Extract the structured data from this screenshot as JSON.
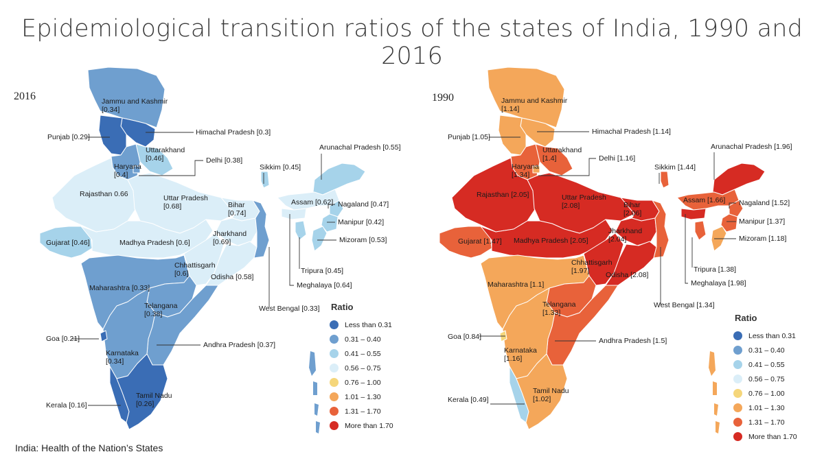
{
  "title": "Epidemiological transition ratios of the states of India, 1990 and 2016",
  "source_note": "India: Health of the Nation’s States",
  "legend": {
    "title": "Ratio",
    "classes": [
      {
        "label": "Less than 0.31",
        "color": "#3a6db5"
      },
      {
        "label": "0.31 – 0.40",
        "color": "#6f9fcf"
      },
      {
        "label": "0.41 – 0.55",
        "color": "#a6d3ea"
      },
      {
        "label": "0.56 – 0.75",
        "color": "#dbeef8"
      },
      {
        "label": "0.76 – 1.00",
        "color": "#f5d67a"
      },
      {
        "label": "1.01 – 1.30",
        "color": "#f4a75a"
      },
      {
        "label": "1.31 – 1.70",
        "color": "#e8623a"
      },
      {
        "label": "More than 1.70",
        "color": "#d62b23"
      }
    ]
  },
  "maps": [
    {
      "year": "2016",
      "states": {
        "jk": {
          "name": "Jammu and Kashmir",
          "value": "[0.34]",
          "color": "#6f9fcf"
        },
        "hp": {
          "name": "Himachal Pradesh",
          "value": "[0.3]",
          "color": "#3a6db5"
        },
        "pb": {
          "name": "Punjab",
          "value": "[0.29]",
          "color": "#3a6db5"
        },
        "uk": {
          "name": "Uttarakhand",
          "value": "[0.46]",
          "color": "#a6d3ea"
        },
        "hr": {
          "name": "Haryana",
          "value": "[0.4]",
          "color": "#6f9fcf"
        },
        "dl": {
          "name": "Delhi",
          "value": "[0.38]",
          "color": "#6f9fcf"
        },
        "rj": {
          "name": "Rajasthan",
          "value": "0.66",
          "color": "#dbeef8"
        },
        "up": {
          "name": "Uttar Pradesh",
          "value": "[0.68]",
          "color": "#dbeef8"
        },
        "br": {
          "name": "Bihar",
          "value": "[0.74]",
          "color": "#dbeef8"
        },
        "jh": {
          "name": "Jharkhand",
          "value": "[0.69]",
          "color": "#dbeef8"
        },
        "gj": {
          "name": "Gujarat",
          "value": "[0.46]",
          "color": "#a6d3ea"
        },
        "mp": {
          "name": "Madhya Pradesh",
          "value": "[0.6]",
          "color": "#dbeef8"
        },
        "cg": {
          "name": "Chhattisgarh",
          "value": "[0.6]",
          "color": "#dbeef8"
        },
        "od": {
          "name": "Odisha",
          "value": "[0.58]",
          "color": "#dbeef8"
        },
        "wb": {
          "name": "West Bengal",
          "value": "[0.33]",
          "color": "#6f9fcf"
        },
        "mh": {
          "name": "Maharashtra",
          "value": "[0.33]",
          "color": "#6f9fcf"
        },
        "tg": {
          "name": "Telangana",
          "value": "[0.38]",
          "color": "#6f9fcf"
        },
        "ap": {
          "name": "Andhra Pradesh",
          "value": "[0.37]",
          "color": "#6f9fcf"
        },
        "ga": {
          "name": "Goa",
          "value": "[0.21]",
          "color": "#3a6db5"
        },
        "ka": {
          "name": "Karnataka",
          "value": "[0.34]",
          "color": "#6f9fcf"
        },
        "kl": {
          "name": "Kerala",
          "value": "[0.16]",
          "color": "#3a6db5"
        },
        "tn": {
          "name": "Tamil Nadu",
          "value": "[0.26]",
          "color": "#3a6db5"
        },
        "sk": {
          "name": "Sikkim",
          "value": "[0.45]",
          "color": "#a6d3ea"
        },
        "ar": {
          "name": "Arunachal Pradesh",
          "value": "[0.55]",
          "color": "#a6d3ea"
        },
        "as": {
          "name": "Assam",
          "value": "[0.62]",
          "color": "#dbeef8"
        },
        "nl": {
          "name": "Nagaland",
          "value": "[0.47]",
          "color": "#a6d3ea"
        },
        "mn": {
          "name": "Manipur",
          "value": "[0.42]",
          "color": "#a6d3ea"
        },
        "mz": {
          "name": "Mizoram",
          "value": "[0.53]",
          "color": "#a6d3ea"
        },
        "tr": {
          "name": "Tripura",
          "value": "[0.45]",
          "color": "#a6d3ea"
        },
        "ml": {
          "name": "Meghalaya",
          "value": "[0.64]",
          "color": "#dbeef8"
        },
        "islands": {
          "color": "#6f9fcf"
        }
      }
    },
    {
      "year": "1990",
      "states": {
        "jk": {
          "name": "Jammu and Kashmir",
          "value": "[1.14]",
          "color": "#f4a75a"
        },
        "hp": {
          "name": "Himachal Pradesh",
          "value": "[1.14]",
          "color": "#f4a75a"
        },
        "pb": {
          "name": "Punjab",
          "value": "[1.05]",
          "color": "#f4a75a"
        },
        "uk": {
          "name": "Uttarakhand",
          "value": "[1.4]",
          "color": "#e8623a"
        },
        "hr": {
          "name": "Haryana",
          "value": "[1.34]",
          "color": "#e8623a"
        },
        "dl": {
          "name": "Delhi",
          "value": "[1.16]",
          "color": "#f4a75a"
        },
        "rj": {
          "name": "Rajasthan",
          "value": "[2.05]",
          "color": "#d62b23"
        },
        "up": {
          "name": "Uttar Pradesh",
          "value": "[2.08]",
          "color": "#d62b23"
        },
        "br": {
          "name": "Bihar",
          "value": "[2.06]",
          "color": "#d62b23"
        },
        "jh": {
          "name": "Jharkhand",
          "value": "[2.04]",
          "color": "#d62b23"
        },
        "gj": {
          "name": "Gujarat",
          "value": "[1.47]",
          "color": "#e8623a"
        },
        "mp": {
          "name": "Madhya Pradesh",
          "value": "[2.05]",
          "color": "#d62b23"
        },
        "cg": {
          "name": "Chhattisgarh",
          "value": "[1.97]",
          "color": "#d62b23"
        },
        "od": {
          "name": "Odisha",
          "value": "[2.08]",
          "color": "#d62b23"
        },
        "wb": {
          "name": "West Bengal",
          "value": "[1.34]",
          "color": "#e8623a"
        },
        "mh": {
          "name": "Maharashtra",
          "value": "[1.1]",
          "color": "#f4a75a"
        },
        "tg": {
          "name": "Telangana",
          "value": "[1.33]",
          "color": "#e8623a"
        },
        "ap": {
          "name": "Andhra Pradesh",
          "value": "[1.5]",
          "color": "#e8623a"
        },
        "ga": {
          "name": "Goa",
          "value": "[0.84]",
          "color": "#f5d67a"
        },
        "ka": {
          "name": "Karnataka",
          "value": "[1.16]",
          "color": "#f4a75a"
        },
        "kl": {
          "name": "Kerala",
          "value": "[0.49]",
          "color": "#a6d3ea"
        },
        "tn": {
          "name": "Tamil Nadu",
          "value": "[1.02]",
          "color": "#f4a75a"
        },
        "sk": {
          "name": "Sikkim",
          "value": "[1.44]",
          "color": "#e8623a"
        },
        "ar": {
          "name": "Arunachal Pradesh",
          "value": "[1.96]",
          "color": "#d62b23"
        },
        "as": {
          "name": "Assam",
          "value": "[1.66]",
          "color": "#e8623a"
        },
        "nl": {
          "name": "Nagaland",
          "value": "[1.52]",
          "color": "#e8623a"
        },
        "mn": {
          "name": "Manipur",
          "value": "[1.37]",
          "color": "#e8623a"
        },
        "mz": {
          "name": "Mizoram",
          "value": "[1.18]",
          "color": "#f4a75a"
        },
        "tr": {
          "name": "Tripura",
          "value": "[1.38]",
          "color": "#e8623a"
        },
        "ml": {
          "name": "Meghalaya",
          "value": "[1.98]",
          "color": "#d62b23"
        },
        "islands": {
          "color": "#f4a75a"
        }
      }
    }
  ]
}
